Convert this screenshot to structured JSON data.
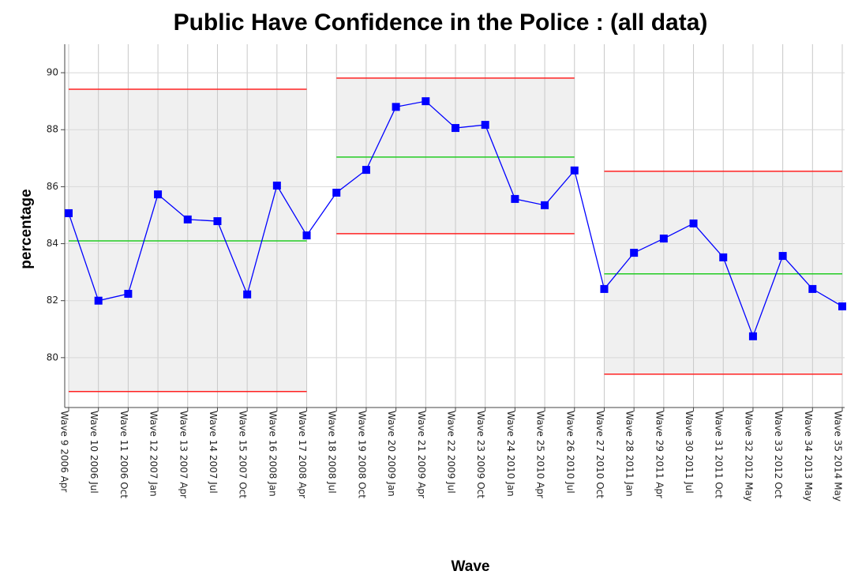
{
  "chart_data": {
    "type": "line",
    "title": "Public Have Confidence in the Police : (all data)",
    "xlabel": "Wave",
    "ylabel": "percentage",
    "categories": [
      "Wave 9 2006 Apr",
      "Wave 10 2006 Jul",
      "Wave 11 2006 Oct",
      "Wave 12 2007 Jan",
      "Wave 13 2007 Apr",
      "Wave 14 2007 Jul",
      "Wave 15 2007 Oct",
      "Wave 16 2008 Jan",
      "Wave 17 2008 Apr",
      "Wave 18 2008 Jul",
      "Wave 19 2008 Oct",
      "Wave 20 2009 Jan",
      "Wave 21 2009 Apr",
      "Wave 22 2009 Jul",
      "Wave 23 2009 Oct",
      "Wave 24 2010 Jan",
      "Wave 25 2010 Apr",
      "Wave 26 2010 Jul",
      "Wave 27 2010 Oct",
      "Wave 28 2011 Jan",
      "Wave 29 2011 Apr",
      "Wave 30 2011 Jul",
      "Wave 31 2011 Oct",
      "Wave 32 2012 May",
      "Wave 33 2012 Oct",
      "Wave 34 2013 May",
      "Wave 35 2014 May"
    ],
    "values": [
      85.07,
      82.0,
      82.24,
      85.73,
      84.85,
      84.79,
      82.22,
      86.04,
      84.29,
      85.79,
      86.59,
      88.8,
      89.0,
      88.06,
      88.17,
      85.57,
      85.35,
      86.57,
      82.41,
      83.68,
      84.18,
      84.71,
      83.52,
      80.75,
      83.57,
      82.41,
      81.8
    ],
    "color": "#0000ff",
    "segments": [
      {
        "start": 0,
        "end": 8,
        "center": 84.1,
        "upper": 89.42,
        "lower": 78.81
      },
      {
        "start": 9,
        "end": 17,
        "center": 87.04,
        "upper": 89.81,
        "lower": 84.35
      },
      {
        "start": 18,
        "end": 26,
        "center": 82.94,
        "upper": 86.54,
        "lower": 79.42
      }
    ],
    "center_color": "#22cc22",
    "limit_color": "#ff2222",
    "band_color": "#f0f0f0",
    "ylim": [
      78.25,
      91
    ],
    "yticks": [
      80,
      82,
      84,
      86,
      88,
      90
    ],
    "grid": true
  }
}
